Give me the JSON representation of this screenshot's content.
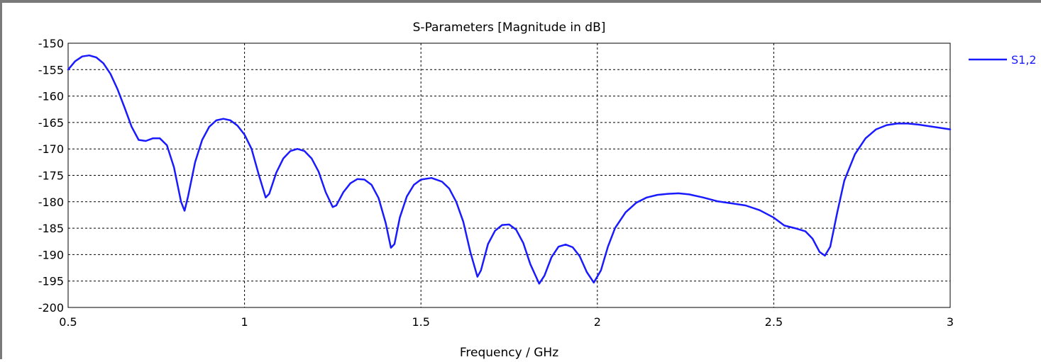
{
  "chart_data": {
    "type": "line",
    "title": "S-Parameters [Magnitude in dB]",
    "xlabel": "Frequency / GHz",
    "ylabel": "",
    "xlim": [
      0.5,
      3
    ],
    "ylim": [
      -200,
      -150
    ],
    "x_ticks": [
      "0.5",
      "1",
      "1.5",
      "2",
      "2.5",
      "3"
    ],
    "y_ticks": [
      "-150",
      "-155",
      "-160",
      "-165",
      "-170",
      "-175",
      "-180",
      "-185",
      "-190",
      "-195",
      "-200"
    ],
    "grid": true,
    "legend_position": "top-right outside",
    "series": [
      {
        "name": "S1,2",
        "color": "#1a1aff",
        "points": [
          [
            0.5,
            -155.0
          ],
          [
            0.52,
            -153.4
          ],
          [
            0.54,
            -152.5
          ],
          [
            0.56,
            -152.3
          ],
          [
            0.58,
            -152.7
          ],
          [
            0.6,
            -153.8
          ],
          [
            0.62,
            -155.8
          ],
          [
            0.64,
            -158.7
          ],
          [
            0.66,
            -162.2
          ],
          [
            0.68,
            -165.8
          ],
          [
            0.7,
            -168.3
          ],
          [
            0.72,
            -168.5
          ],
          [
            0.74,
            -168.0
          ],
          [
            0.76,
            -168.0
          ],
          [
            0.78,
            -169.3
          ],
          [
            0.8,
            -173.5
          ],
          [
            0.82,
            -180.0
          ],
          [
            0.83,
            -181.7
          ],
          [
            0.84,
            -179.0
          ],
          [
            0.86,
            -172.5
          ],
          [
            0.88,
            -168.3
          ],
          [
            0.9,
            -165.8
          ],
          [
            0.92,
            -164.6
          ],
          [
            0.94,
            -164.3
          ],
          [
            0.96,
            -164.6
          ],
          [
            0.98,
            -165.6
          ],
          [
            1.0,
            -167.3
          ],
          [
            1.02,
            -170.0
          ],
          [
            1.04,
            -174.8
          ],
          [
            1.06,
            -179.2
          ],
          [
            1.07,
            -178.5
          ],
          [
            1.09,
            -174.5
          ],
          [
            1.11,
            -171.8
          ],
          [
            1.13,
            -170.4
          ],
          [
            1.15,
            -170.0
          ],
          [
            1.17,
            -170.4
          ],
          [
            1.19,
            -171.8
          ],
          [
            1.21,
            -174.3
          ],
          [
            1.23,
            -178.2
          ],
          [
            1.25,
            -181.0
          ],
          [
            1.26,
            -180.7
          ],
          [
            1.28,
            -178.2
          ],
          [
            1.3,
            -176.5
          ],
          [
            1.32,
            -175.7
          ],
          [
            1.34,
            -175.8
          ],
          [
            1.36,
            -176.8
          ],
          [
            1.38,
            -179.3
          ],
          [
            1.4,
            -184.0
          ],
          [
            1.415,
            -188.7
          ],
          [
            1.425,
            -188.0
          ],
          [
            1.44,
            -183.0
          ],
          [
            1.46,
            -179.0
          ],
          [
            1.48,
            -176.8
          ],
          [
            1.5,
            -175.8
          ],
          [
            1.53,
            -175.5
          ],
          [
            1.56,
            -176.2
          ],
          [
            1.58,
            -177.5
          ],
          [
            1.6,
            -180.0
          ],
          [
            1.62,
            -183.8
          ],
          [
            1.64,
            -189.5
          ],
          [
            1.66,
            -194.2
          ],
          [
            1.67,
            -193.0
          ],
          [
            1.69,
            -188.0
          ],
          [
            1.71,
            -185.5
          ],
          [
            1.73,
            -184.4
          ],
          [
            1.75,
            -184.3
          ],
          [
            1.77,
            -185.3
          ],
          [
            1.79,
            -187.8
          ],
          [
            1.81,
            -191.8
          ],
          [
            1.835,
            -195.5
          ],
          [
            1.85,
            -194.0
          ],
          [
            1.87,
            -190.5
          ],
          [
            1.89,
            -188.5
          ],
          [
            1.91,
            -188.1
          ],
          [
            1.93,
            -188.6
          ],
          [
            1.95,
            -190.3
          ],
          [
            1.97,
            -193.3
          ],
          [
            1.99,
            -195.3
          ],
          [
            2.01,
            -193.0
          ],
          [
            2.03,
            -188.5
          ],
          [
            2.05,
            -185.0
          ],
          [
            2.08,
            -182.0
          ],
          [
            2.11,
            -180.2
          ],
          [
            2.14,
            -179.2
          ],
          [
            2.17,
            -178.7
          ],
          [
            2.2,
            -178.5
          ],
          [
            2.23,
            -178.4
          ],
          [
            2.26,
            -178.6
          ],
          [
            2.3,
            -179.2
          ],
          [
            2.34,
            -179.9
          ],
          [
            2.38,
            -180.3
          ],
          [
            2.42,
            -180.7
          ],
          [
            2.46,
            -181.6
          ],
          [
            2.5,
            -183.0
          ],
          [
            2.53,
            -184.5
          ],
          [
            2.56,
            -185.0
          ],
          [
            2.59,
            -185.6
          ],
          [
            2.61,
            -187.0
          ],
          [
            2.63,
            -189.5
          ],
          [
            2.645,
            -190.2
          ],
          [
            2.66,
            -188.5
          ],
          [
            2.68,
            -182.0
          ],
          [
            2.7,
            -176.0
          ],
          [
            2.73,
            -171.0
          ],
          [
            2.76,
            -168.0
          ],
          [
            2.79,
            -166.3
          ],
          [
            2.82,
            -165.5
          ],
          [
            2.85,
            -165.2
          ],
          [
            2.88,
            -165.2
          ],
          [
            2.91,
            -165.4
          ],
          [
            2.94,
            -165.7
          ],
          [
            2.97,
            -166.0
          ],
          [
            3.0,
            -166.3
          ]
        ]
      }
    ]
  }
}
